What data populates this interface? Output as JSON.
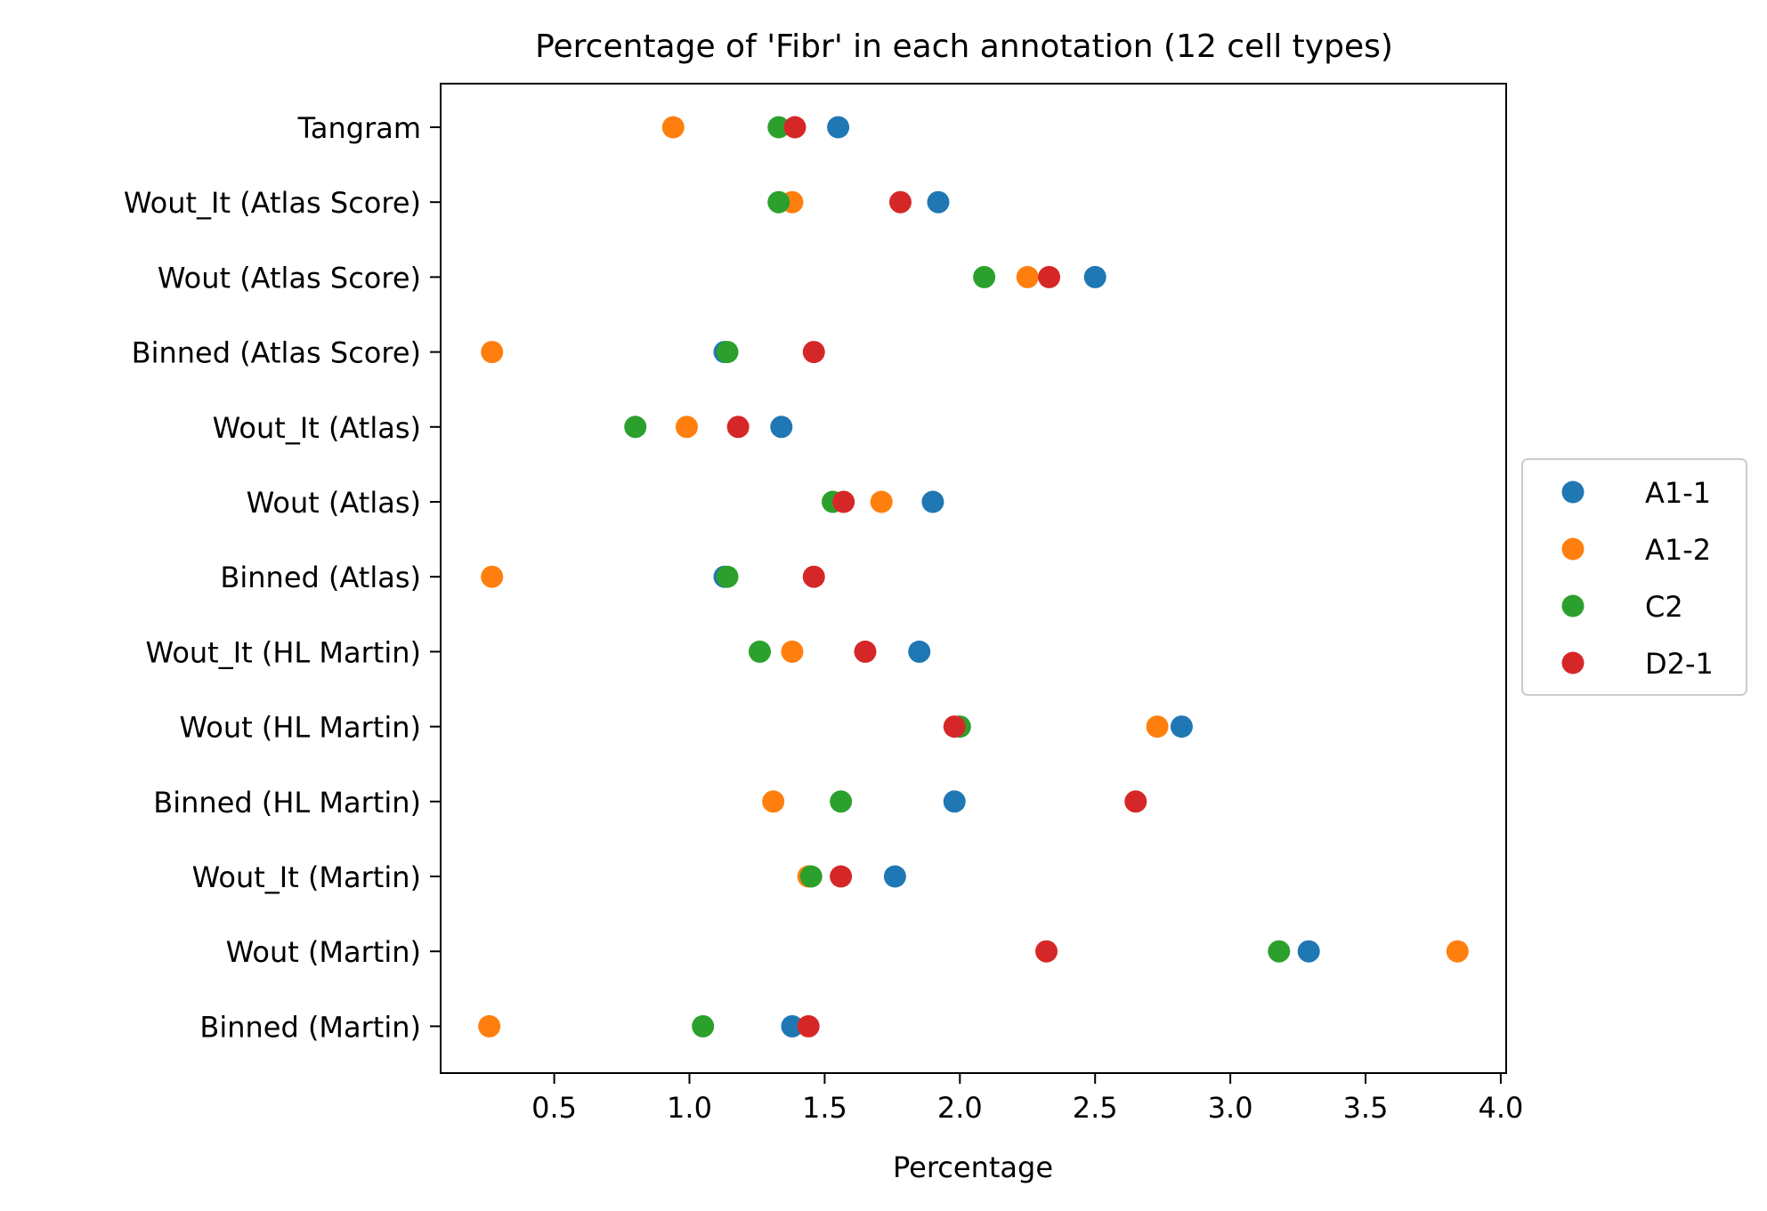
{
  "chart_data": {
    "type": "scatter",
    "title": "Percentage of 'Fibr' in each annotation (12 cell types)",
    "xlabel": "Percentage",
    "ylabel": "",
    "xlim": [
      0.08,
      4.02
    ],
    "xticks": [
      0.5,
      1.0,
      1.5,
      2.0,
      2.5,
      3.0,
      3.5,
      4.0
    ],
    "xtick_labels": [
      "0.5",
      "1.0",
      "1.5",
      "2.0",
      "2.5",
      "3.0",
      "3.5",
      "4.0"
    ],
    "categories": [
      "Tangram",
      "Wout_It (Atlas Score)",
      "Wout (Atlas Score)",
      "Binned (Atlas Score)",
      "Wout_It (Atlas)",
      "Wout (Atlas)",
      "Binned (Atlas)",
      "Wout_It (HL Martin)",
      "Wout (HL Martin)",
      "Binned (HL Martin)",
      "Wout_It (Martin)",
      "Wout (Martin)",
      "Binned (Martin)"
    ],
    "grid": false,
    "legend_position": "center-right outside",
    "series": [
      {
        "name": "A1-1",
        "color": "#1f77b4",
        "values": [
          1.55,
          1.92,
          2.5,
          1.13,
          1.34,
          1.9,
          1.13,
          1.85,
          2.82,
          1.98,
          1.76,
          3.29,
          1.38
        ]
      },
      {
        "name": "A1-2",
        "color": "#ff7f0e",
        "values": [
          0.94,
          1.38,
          2.25,
          0.27,
          0.99,
          1.71,
          0.27,
          1.38,
          2.73,
          1.31,
          1.44,
          3.84,
          0.26
        ]
      },
      {
        "name": "C2",
        "color": "#2ca02c",
        "values": [
          1.33,
          1.33,
          2.09,
          1.14,
          0.8,
          1.53,
          1.14,
          1.26,
          2.0,
          1.56,
          1.45,
          3.18,
          1.05
        ]
      },
      {
        "name": "D2-1",
        "color": "#d62728",
        "values": [
          1.39,
          1.78,
          2.33,
          1.46,
          1.18,
          1.57,
          1.46,
          1.65,
          1.98,
          2.65,
          1.56,
          2.32,
          1.44
        ]
      }
    ]
  }
}
